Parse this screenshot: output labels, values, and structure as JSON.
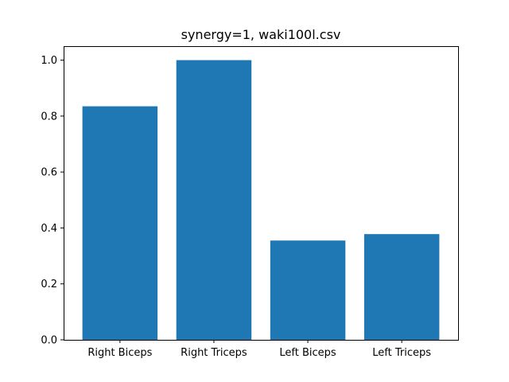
{
  "chart_data": {
    "type": "bar",
    "title": "synergy=1, waki100l.csv",
    "xlabel": "",
    "ylabel": "",
    "categories": [
      "Right Biceps",
      "Right Triceps",
      "Left Biceps",
      "Left Triceps"
    ],
    "values": [
      0.835,
      1.0,
      0.355,
      0.378
    ],
    "ylim": [
      0.0,
      1.05
    ],
    "yticks": [
      "0.0",
      "0.2",
      "0.4",
      "0.6",
      "0.8",
      "1.0"
    ],
    "grid": false,
    "bar_color": "#1f77b4"
  }
}
